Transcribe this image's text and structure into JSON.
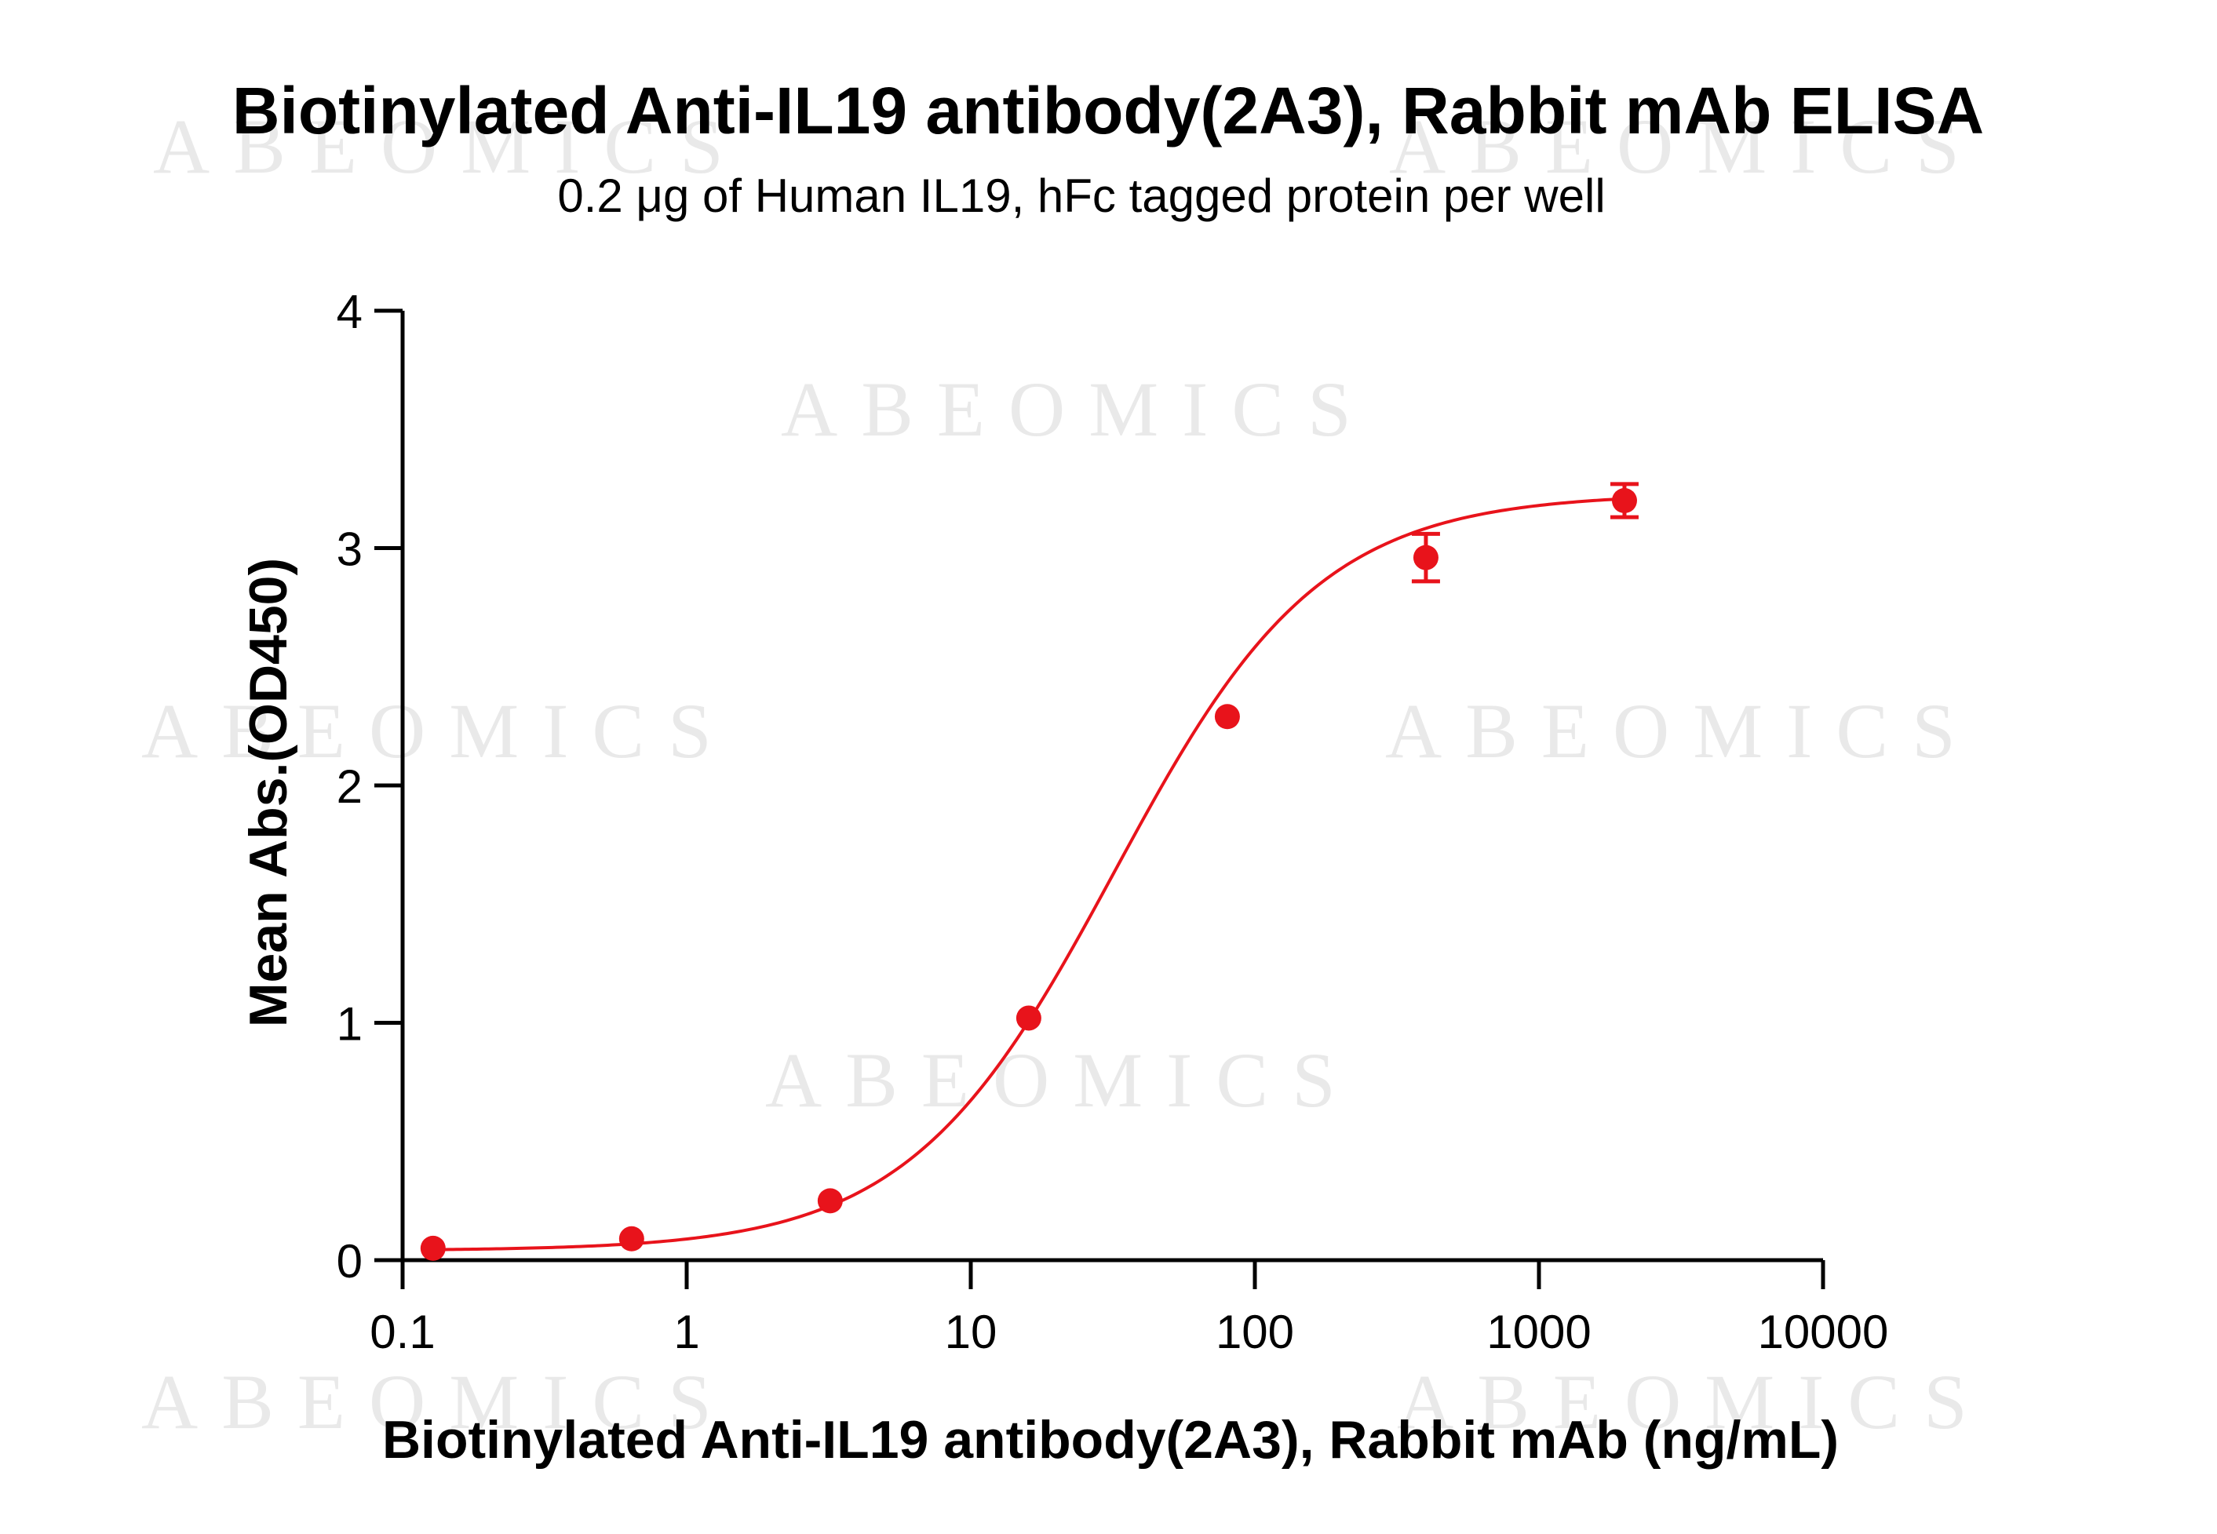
{
  "chart_data": {
    "type": "scatter",
    "title": "Biotinylated Anti-IL19 antibody(2A3), Rabbit mAb ELISA",
    "subtitle": "0.2 μg of Human IL19, hFc tagged protein per well",
    "xlabel": "Biotinylated Anti-IL19 antibody(2A3), Rabbit mAb (ng/mL)",
    "ylabel": "Mean Abs.(OD450)",
    "x_scale": "log",
    "xlim": [
      0.1,
      10000
    ],
    "ylim": [
      0,
      4
    ],
    "x_ticks": [
      0.1,
      1,
      10,
      100,
      1000,
      10000
    ],
    "x_tick_labels": [
      "0.1",
      "1",
      "10",
      "100",
      "1000",
      "10000"
    ],
    "y_ticks": [
      0,
      1,
      2,
      3,
      4
    ],
    "y_tick_labels": [
      "0",
      "1",
      "2",
      "3",
      "4"
    ],
    "grid": false,
    "legend": "none",
    "series": [
      {
        "color": "#e8131b",
        "x": [
          0.128,
          0.64,
          3.2,
          16,
          80,
          400,
          2000
        ],
        "y": [
          0.05,
          0.09,
          0.25,
          1.02,
          2.29,
          2.96,
          3.2
        ],
        "error": [
          0.0,
          0.0,
          0.0,
          0.0,
          0.0,
          0.1,
          0.07
        ],
        "fit": {
          "model": "4PL",
          "bottom": 0.04,
          "top": 3.23,
          "ec50": 32,
          "hill": 1.2
        }
      }
    ],
    "watermark": "ABEOMICS"
  }
}
